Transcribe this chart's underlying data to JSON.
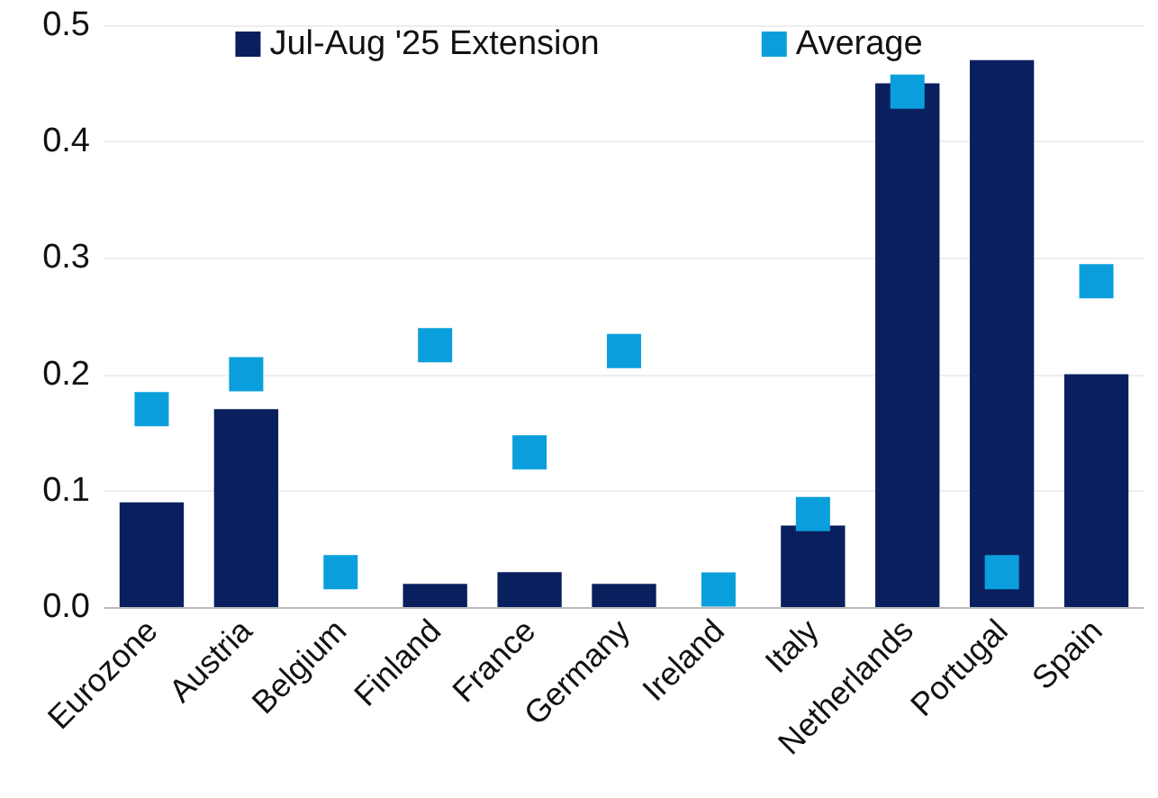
{
  "chart_data": {
    "type": "bar",
    "categories": [
      "Eurozone",
      "Austria",
      "Belgium",
      "Finland",
      "France",
      "Germany",
      "Ireland",
      "Italy",
      "Netherlands",
      "Portugal",
      "Spain"
    ],
    "series": [
      {
        "name": "Jul-Aug '25 Extension",
        "color": "#0a1f5e",
        "values": [
          0.09,
          0.17,
          0,
          0.02,
          0.03,
          0.02,
          0,
          0.07,
          0.45,
          0.47,
          0.2
        ]
      },
      {
        "name": "Average",
        "type": "scatter",
        "color": "#0a9fdc",
        "marker": "square",
        "x": [
          "Eurozone",
          "Austria",
          "Belgium",
          "Finland",
          "France",
          "Germany",
          "Ireland",
          "Italy",
          "Netherlands",
          "Portugal",
          "Spain"
        ],
        "values": [
          0.17,
          0.2,
          0.03,
          0.225,
          0.133,
          0.22,
          0.015,
          0.08,
          0.443,
          0.03,
          0.28
        ]
      }
    ],
    "ylim": [
      0,
      0.5
    ],
    "yticks": [
      {
        "value": 0,
        "label": "0.0"
      },
      0.1,
      0.2,
      0.3,
      0.4,
      0.5
    ],
    "grid": "y",
    "legend": "top"
  }
}
